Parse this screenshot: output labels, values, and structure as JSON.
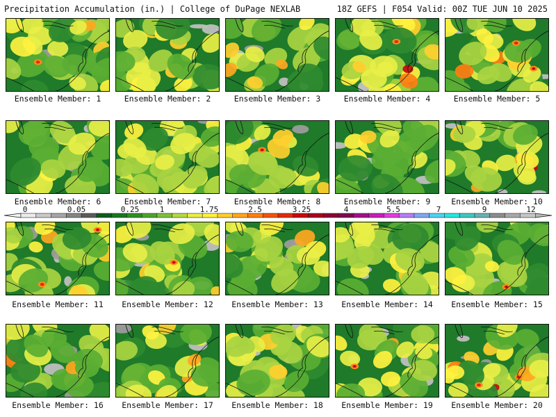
{
  "header": {
    "left": "Precipitation Accumulation (in.) | College of DuPage NEXLAB",
    "right": "18Z GEFS | F054 Valid: 00Z TUE JUN 10 2025"
  },
  "colorbar": {
    "labels": [
      "0",
      "0.05",
      "0.25",
      "1",
      "1.75",
      "2.5",
      "3.25",
      "4",
      "5.5",
      "7",
      "9",
      "12"
    ],
    "colors": [
      "#ececec",
      "#cacaca",
      "#a6a6a6",
      "#848484",
      "#5b5b5b",
      "#0b5d1e",
      "#17761f",
      "#2c8f25",
      "#4aa52c",
      "#7cc13c",
      "#b5d942",
      "#e7ee47",
      "#fff23f",
      "#ffcf2e",
      "#ffa71f",
      "#ff7e12",
      "#f2530d",
      "#e22a0b",
      "#c7090c",
      "#a5051e",
      "#8a0633",
      "#7d0b4e",
      "#a10f86",
      "#c71eb7",
      "#e33ae0",
      "#b87cf2",
      "#7fa8f2",
      "#4fd2f0",
      "#26e6e0",
      "#3fc7c1",
      "#66b2b0",
      "#8c8c8c",
      "#a8a8a8",
      "#c6c6c6"
    ]
  },
  "panels": [
    {
      "caption": "Ensemble Member: 1",
      "seed": 11,
      "wet": 0.5
    },
    {
      "caption": "Ensemble Member: 2",
      "seed": 22,
      "wet": 0.55
    },
    {
      "caption": "Ensemble Member: 3",
      "seed": 33,
      "wet": 0.65
    },
    {
      "caption": "Ensemble Member: 4",
      "seed": 44,
      "wet": 0.7
    },
    {
      "caption": "Ensemble Member: 5",
      "seed": 55,
      "wet": 0.65
    },
    {
      "caption": "Ensemble Member: 6",
      "seed": 66,
      "wet": 0.5
    },
    {
      "caption": "Ensemble Member: 7",
      "seed": 77,
      "wet": 0.45
    },
    {
      "caption": "Ensemble Member: 8",
      "seed": 88,
      "wet": 0.5
    },
    {
      "caption": "Ensemble Member: 9",
      "seed": 99,
      "wet": 0.4
    },
    {
      "caption": "Ensemble Member: 10",
      "seed": 110,
      "wet": 0.75
    },
    {
      "caption": "Ensemble Member: 11",
      "seed": 121,
      "wet": 0.55
    },
    {
      "caption": "Ensemble Member: 12",
      "seed": 132,
      "wet": 0.55
    },
    {
      "caption": "Ensemble Member: 13",
      "seed": 143,
      "wet": 0.5
    },
    {
      "caption": "Ensemble Member: 14",
      "seed": 154,
      "wet": 0.5
    },
    {
      "caption": "Ensemble Member: 15",
      "seed": 165,
      "wet": 0.35
    },
    {
      "caption": "Ensemble Member: 16",
      "seed": 176,
      "wet": 0.6
    },
    {
      "caption": "Ensemble Member: 17",
      "seed": 187,
      "wet": 0.6
    },
    {
      "caption": "Ensemble Member: 18",
      "seed": 198,
      "wet": 0.55
    },
    {
      "caption": "Ensemble Member: 19",
      "seed": 209,
      "wet": 0.65
    },
    {
      "caption": "Ensemble Member: 20",
      "seed": 220,
      "wet": 0.7
    }
  ]
}
